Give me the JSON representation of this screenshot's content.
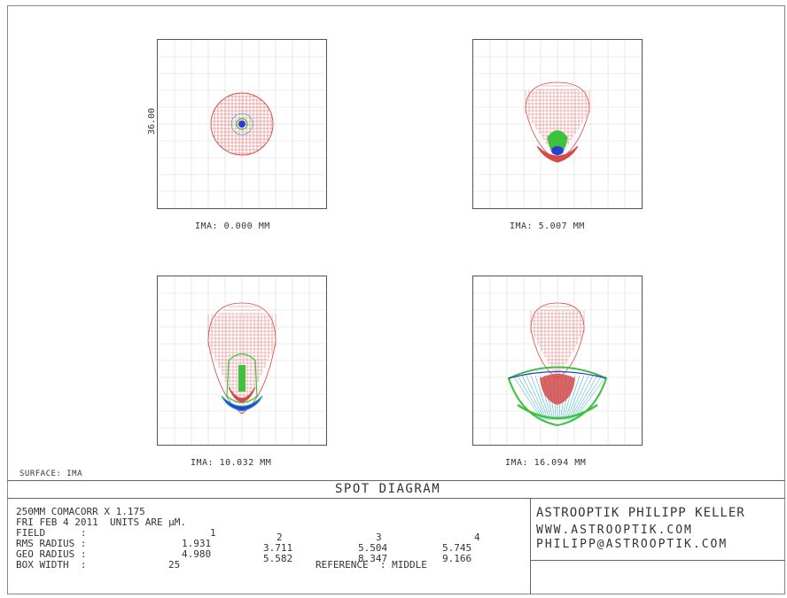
{
  "plots": [
    {
      "caption": "IMA: 0.000 MM",
      "scale_label": "36.00"
    },
    {
      "caption": "IMA: 5.007 MM"
    },
    {
      "caption": "IMA: 10.032 MM"
    },
    {
      "caption": "IMA: 16.094 MM"
    }
  ],
  "surface_label": "SURFACE: IMA",
  "title": "SPOT DIAGRAM",
  "info": {
    "line1": "250MM COMACORR X 1.175",
    "line2": "FRI FEB 4 2011  UNITS ARE µM.",
    "field_label": "FIELD      :",
    "fields": [
      "1",
      "2",
      "3",
      "4"
    ],
    "rms_label": "RMS RADIUS :",
    "rms": [
      "1.931",
      "3.711",
      "5.504",
      "5.745"
    ],
    "geo_label": "GEO RADIUS :",
    "geo": [
      "4.980",
      "5.582",
      "8.347",
      "9.166"
    ],
    "box_label": "BOX WIDTH  :",
    "box_value": "25",
    "reference": "REFERENCE  : MIDDLE"
  },
  "brand": {
    "name": "ASTROOPTIK PHILIPP KELLER",
    "url": "WWW.ASTROOPTIK.COM",
    "email": "PHILIPP@ASTROOPTIK.COM"
  },
  "colors": {
    "red": "#d44a4a",
    "green": "#3cc23c",
    "blue": "#2b3fd6",
    "cyan": "#25a7b5",
    "grid": "#d9d9d9"
  }
}
